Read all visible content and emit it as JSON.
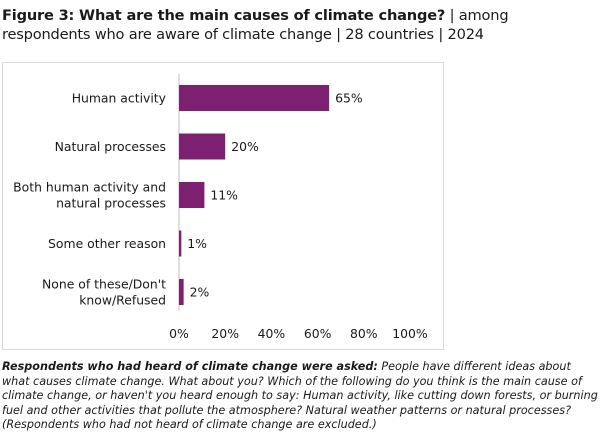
{
  "figure": {
    "title_bold": "Figure 3: What are the main causes of climate change?",
    "title_rest": " | among respondents who are aware of climate change | 28 countries | 2024"
  },
  "colors": {
    "bar": "#7b2170",
    "axis": "#bfbfbf",
    "text": "#1a1a1a"
  },
  "chart_data": {
    "type": "bar",
    "orientation": "horizontal",
    "categories": [
      "Human activity",
      "Natural processes",
      "Both human activity and natural processes",
      "Some other reason",
      "None of these/Don't know/Refused"
    ],
    "values": [
      65,
      20,
      11,
      1,
      2
    ],
    "value_labels": [
      "65%",
      "20%",
      "11%",
      "1%",
      "2%"
    ],
    "xlim": [
      0,
      100
    ],
    "x_ticks": [
      "0%",
      "20%",
      "40%",
      "60%",
      "80%",
      "100%"
    ],
    "grid": false
  },
  "note": {
    "lead": "Respondents who had heard of climate change were asked:",
    "body": " People have different ideas about what causes climate change. What about you? Which of the following do you think is the main cause of climate change, or haven't you heard enough to say: Human activity, like cutting down forests, or burning fuel and other activities that pollute the atmosphere? Natural weather patterns or natural processes? (Respondents who had not heard of climate change are excluded.)"
  }
}
